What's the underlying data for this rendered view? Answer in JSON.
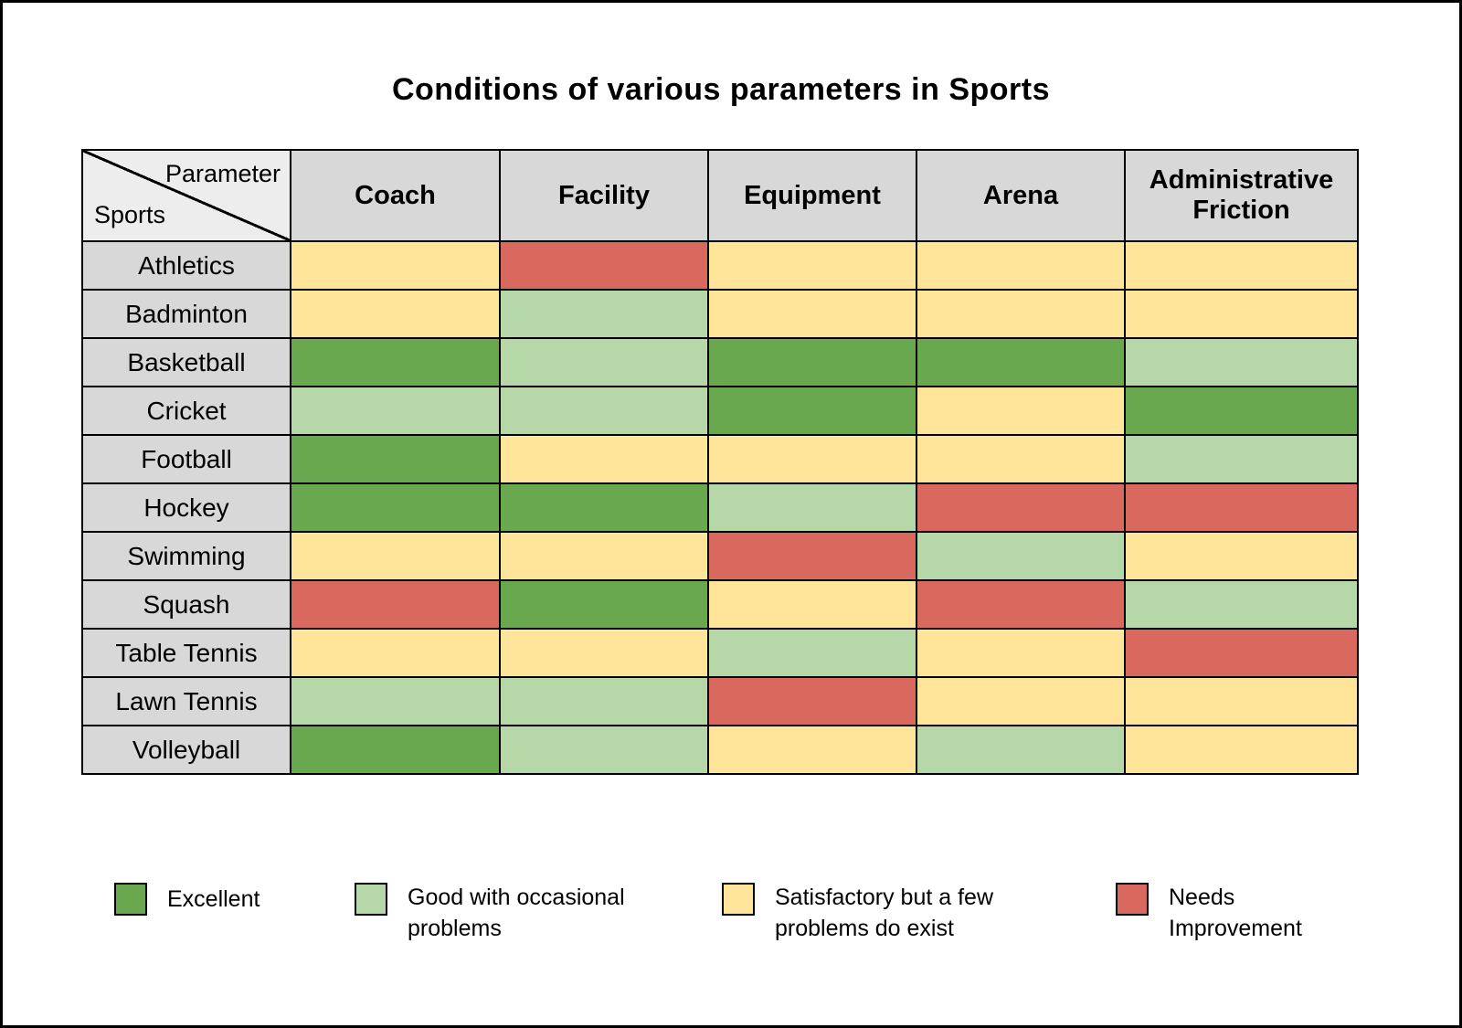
{
  "title": "Conditions of various parameters in Sports",
  "table": {
    "corner": {
      "top_label": "Parameter",
      "bottom_label": "Sports"
    },
    "columns": [
      "Coach",
      "Facility",
      "Equipment",
      "Arena",
      "Administrative Friction"
    ],
    "rows": [
      {
        "sport": "Athletics",
        "values": [
          "satisfactory",
          "needs_improvement",
          "satisfactory",
          "satisfactory",
          "satisfactory"
        ]
      },
      {
        "sport": "Badminton",
        "values": [
          "satisfactory",
          "good",
          "satisfactory",
          "satisfactory",
          "satisfactory"
        ]
      },
      {
        "sport": "Basketball",
        "values": [
          "excellent",
          "good",
          "excellent",
          "excellent",
          "good"
        ]
      },
      {
        "sport": "Cricket",
        "values": [
          "good",
          "good",
          "excellent",
          "satisfactory",
          "excellent"
        ]
      },
      {
        "sport": "Football",
        "values": [
          "excellent",
          "satisfactory",
          "satisfactory",
          "satisfactory",
          "good"
        ]
      },
      {
        "sport": "Hockey",
        "values": [
          "excellent",
          "excellent",
          "good",
          "needs_improvement",
          "needs_improvement"
        ]
      },
      {
        "sport": "Swimming",
        "values": [
          "satisfactory",
          "satisfactory",
          "needs_improvement",
          "good",
          "satisfactory"
        ]
      },
      {
        "sport": "Squash",
        "values": [
          "needs_improvement",
          "excellent",
          "satisfactory",
          "needs_improvement",
          "good"
        ]
      },
      {
        "sport": "Table Tennis",
        "values": [
          "satisfactory",
          "satisfactory",
          "good",
          "satisfactory",
          "needs_improvement"
        ]
      },
      {
        "sport": "Lawn Tennis",
        "values": [
          "good",
          "good",
          "needs_improvement",
          "satisfactory",
          "satisfactory"
        ]
      },
      {
        "sport": "Volleyball",
        "values": [
          "excellent",
          "good",
          "satisfactory",
          "good",
          "satisfactory"
        ]
      }
    ]
  },
  "colors": {
    "excellent": "#6aa84f",
    "good": "#b6d7a8",
    "satisfactory": "#ffe599",
    "needs_improvement": "#d9695f",
    "header_gray": "#d8d8d8",
    "border_black": "#000000"
  },
  "legend": {
    "items": [
      {
        "key": "excellent",
        "label": "Excellent"
      },
      {
        "key": "good",
        "label": "Good with occasional problems"
      },
      {
        "key": "satisfactory",
        "label": "Satisfactory but a few problems do exist"
      },
      {
        "key": "needs_improvement",
        "label": "Needs Improvement"
      }
    ]
  },
  "chart_data": {
    "type": "heatmap",
    "title": "Conditions of various parameters in Sports",
    "columns": [
      "Coach",
      "Facility",
      "Equipment",
      "Arena",
      "Administrative Friction"
    ],
    "rows": [
      "Athletics",
      "Badminton",
      "Basketball",
      "Cricket",
      "Football",
      "Hockey",
      "Swimming",
      "Squash",
      "Table Tennis",
      "Lawn Tennis",
      "Volleyball"
    ],
    "values": [
      [
        "Satisfactory but a few problems do exist",
        "Needs Improvement",
        "Satisfactory but a few problems do exist",
        "Satisfactory but a few problems do exist",
        "Satisfactory but a few problems do exist"
      ],
      [
        "Satisfactory but a few problems do exist",
        "Good with occasional problems",
        "Satisfactory but a few problems do exist",
        "Satisfactory but a few problems do exist",
        "Satisfactory but a few problems do exist"
      ],
      [
        "Excellent",
        "Good with occasional problems",
        "Excellent",
        "Excellent",
        "Good with occasional problems"
      ],
      [
        "Good with occasional problems",
        "Good with occasional problems",
        "Excellent",
        "Satisfactory but a few problems do exist",
        "Excellent"
      ],
      [
        "Excellent",
        "Satisfactory but a few problems do exist",
        "Satisfactory but a few problems do exist",
        "Satisfactory but a few problems do exist",
        "Good with occasional problems"
      ],
      [
        "Excellent",
        "Excellent",
        "Good with occasional problems",
        "Needs Improvement",
        "Needs Improvement"
      ],
      [
        "Satisfactory but a few problems do exist",
        "Satisfactory but a few problems do exist",
        "Needs Improvement",
        "Good with occasional problems",
        "Satisfactory but a few problems do exist"
      ],
      [
        "Needs Improvement",
        "Excellent",
        "Satisfactory but a few problems do exist",
        "Needs Improvement",
        "Good with occasional problems"
      ],
      [
        "Satisfactory but a few problems do exist",
        "Satisfactory but a few problems do exist",
        "Good with occasional problems",
        "Satisfactory but a few problems do exist",
        "Needs Improvement"
      ],
      [
        "Good with occasional problems",
        "Good with occasional problems",
        "Needs Improvement",
        "Satisfactory but a few problems do exist",
        "Satisfactory but a few problems do exist"
      ],
      [
        "Excellent",
        "Good with occasional problems",
        "Satisfactory but a few problems do exist",
        "Good with occasional problems",
        "Satisfactory but a few problems do exist"
      ]
    ],
    "legend": {
      "excellent": "Excellent",
      "good": "Good with occasional problems",
      "satisfactory": "Satisfactory but a few problems do exist",
      "needs_improvement": "Needs Improvement"
    },
    "legend_position": "bottom",
    "grid": true
  }
}
